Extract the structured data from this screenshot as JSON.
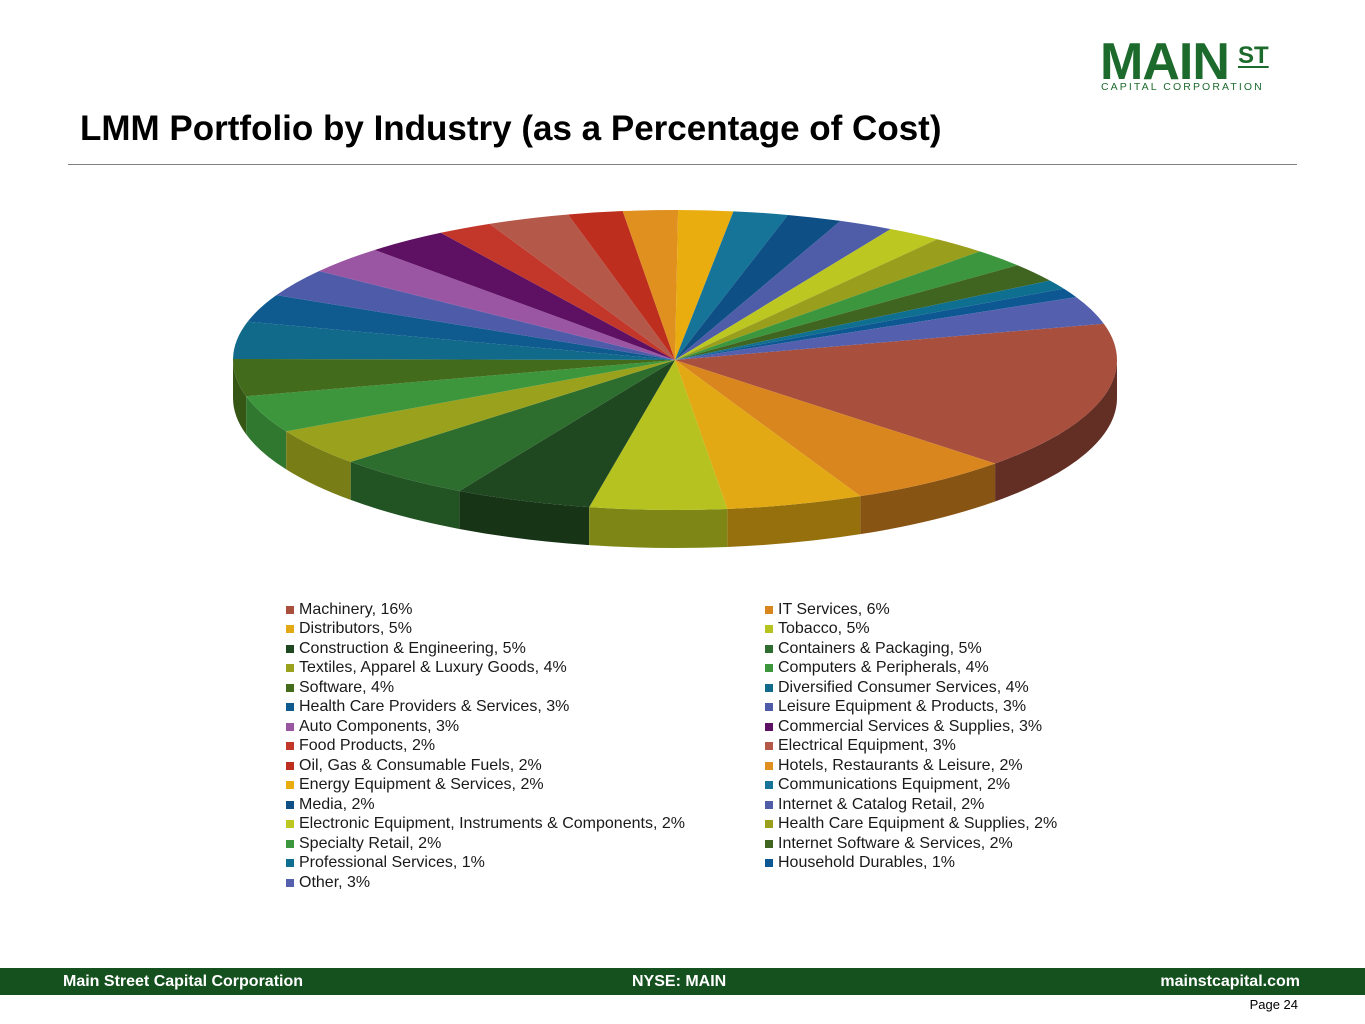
{
  "logo": {
    "main": "MAIN",
    "st": "ST",
    "sub": "CAPITAL CORPORATION"
  },
  "title": "LMM Portfolio by Industry (as a Percentage of Cost)",
  "footer": {
    "left": "Main Street Capital Corporation",
    "center": "NYSE: MAIN",
    "right": "mainstcapital.com"
  },
  "page": "Page  24",
  "chart_data": {
    "type": "pie",
    "title": "LMM Portfolio by Industry (as a Percentage of Cost)",
    "unit": "%",
    "legend_position": "bottom",
    "slices": [
      {
        "label": "Machinery, 16%",
        "name": "Machinery",
        "value": 16,
        "color": "#a84f3e"
      },
      {
        "label": "IT Services, 6%",
        "name": "IT Services",
        "value": 6,
        "color": "#d9861e"
      },
      {
        "label": "Distributors, 5%",
        "name": "Distributors",
        "value": 5,
        "color": "#e2a914"
      },
      {
        "label": "Tobacco, 5%",
        "name": "Tobacco",
        "value": 5,
        "color": "#b6c21f"
      },
      {
        "label": "Construction & Engineering, 5%",
        "name": "Construction & Engineering",
        "value": 5,
        "color": "#1f4720"
      },
      {
        "label": "Containers & Packaging, 5%",
        "name": "Containers & Packaging",
        "value": 5,
        "color": "#2d6d2e"
      },
      {
        "label": "Textiles, Apparel & Luxury Goods, 4%",
        "name": "Textiles, Apparel & Luxury Goods",
        "value": 4,
        "color": "#9aa11c"
      },
      {
        "label": "Computers & Peripherals, 4%",
        "name": "Computers & Peripherals",
        "value": 4,
        "color": "#3d963c"
      },
      {
        "label": "Software, 4%",
        "name": "Software",
        "value": 4,
        "color": "#436b1c"
      },
      {
        "label": "Diversified Consumer Services, 4%",
        "name": "Diversified Consumer Services",
        "value": 4,
        "color": "#116a8a"
      },
      {
        "label": "Health Care Providers & Services, 3%",
        "name": "Health Care Providers & Services",
        "value": 3,
        "color": "#0f5a8f"
      },
      {
        "label": "Leisure Equipment & Products, 3%",
        "name": "Leisure Equipment & Products",
        "value": 3,
        "color": "#4d5ba8"
      },
      {
        "label": "Auto Components, 3%",
        "name": "Auto Components",
        "value": 3,
        "color": "#9a55a3"
      },
      {
        "label": "Commercial Services & Supplies, 3%",
        "name": "Commercial Services & Supplies",
        "value": 3,
        "color": "#5e1062"
      },
      {
        "label": "Food Products, 2%",
        "name": "Food Products",
        "value": 2,
        "color": "#c2372a"
      },
      {
        "label": "Electrical Equipment, 3%",
        "name": "Electrical Equipment",
        "value": 3,
        "color": "#b4584a"
      },
      {
        "label": "Oil, Gas & Consumable Fuels, 2%",
        "name": "Oil, Gas & Consumable Fuels",
        "value": 2,
        "color": "#be2e1f"
      },
      {
        "label": "Hotels, Restaurants & Leisure, 2%",
        "name": "Hotels, Restaurants & Leisure",
        "value": 2,
        "color": "#e0901e"
      },
      {
        "label": "Energy Equipment & Services, 2%",
        "name": "Energy Equipment & Services",
        "value": 2,
        "color": "#e9ad10"
      },
      {
        "label": "Communications Equipment, 2%",
        "name": "Communications Equipment",
        "value": 2,
        "color": "#157497"
      },
      {
        "label": "Media, 2%",
        "name": "Media",
        "value": 2,
        "color": "#0e4f86"
      },
      {
        "label": "Internet & Catalog Retail, 2%",
        "name": "Internet & Catalog Retail",
        "value": 2,
        "color": "#4f5da8"
      },
      {
        "label": "Electronic Equipment, Instruments & Components, 2%",
        "name": "Electronic Equipment, Instruments & Components",
        "value": 2,
        "color": "#bcc722"
      },
      {
        "label": "Health Care Equipment & Supplies, 2%",
        "name": "Health Care Equipment & Supplies",
        "value": 2,
        "color": "#9a9e1d"
      },
      {
        "label": "Specialty Retail, 2%",
        "name": "Specialty Retail",
        "value": 2,
        "color": "#3b963d"
      },
      {
        "label": "Internet Software & Services, 2%",
        "name": "Internet Software & Services",
        "value": 2,
        "color": "#3f6520"
      },
      {
        "label": "Professional Services, 1%",
        "name": "Professional Services",
        "value": 1,
        "color": "#0f6f90"
      },
      {
        "label": "Household Durables, 1%",
        "name": "Household Durables",
        "value": 1,
        "color": "#0d5893"
      },
      {
        "label": "Other, 3%",
        "name": "Other",
        "value": 3,
        "color": "#5460ad"
      }
    ]
  }
}
